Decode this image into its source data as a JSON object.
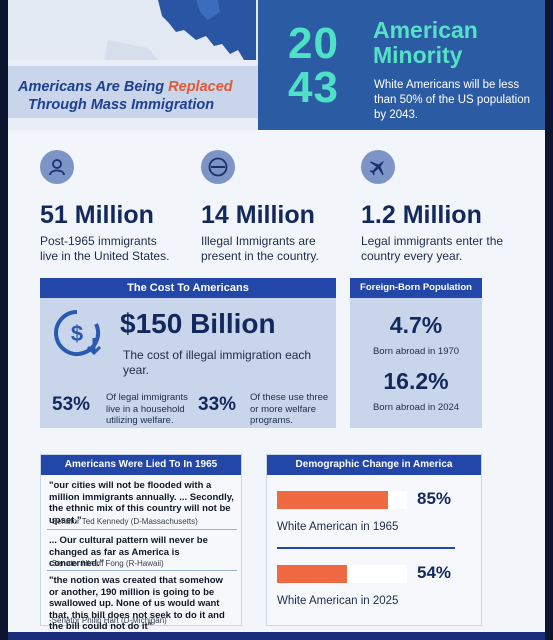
{
  "header": {
    "tagline_part1": "Americans Are Being ",
    "tagline_accent": "Replaced",
    "tagline_part2": "Through Mass Immigration",
    "year_top": "20",
    "year_bottom": "43",
    "title_line1": "American",
    "title_line2": "Minority",
    "subtitle": "White Americans will be less than 50% of the US population by 2043."
  },
  "stats": [
    {
      "icon": "person-icon",
      "value": "51 Million",
      "desc": "Post-1965 immigrants live in the United States."
    },
    {
      "icon": "no-entry-icon",
      "value": "14 Million",
      "desc": "Illegal Immigrants are present in the country."
    },
    {
      "icon": "airplane-icon",
      "value": "1.2 Million",
      "desc": "Legal immigrants enter the country every year."
    }
  ],
  "cost": {
    "header": "The Cost To Americans",
    "icon": "dollar-down-icon",
    "value": "$150 Billion",
    "desc": "The cost of illegal immigration each year.",
    "pct1": "53%",
    "pct1_desc": "Of legal immigrants live in a household utilizing welfare.",
    "pct2": "33%",
    "pct2_desc": "Of these use three or more welfare programs."
  },
  "foreign_born": {
    "header": "Foreign-Born Population",
    "value1": "4.7%",
    "label1": "Born abroad in 1970",
    "value2": "16.2%",
    "label2": "Born abroad in 2024"
  },
  "quotes": {
    "header": "Americans Were Lied To In 1965",
    "items": [
      {
        "text": "\"our cities will not be flooded with a million immigrants annually. ... Secondly, the ethnic mix of this country will not be upset.\"",
        "author": "-Senator Ted Kennedy (D-Massachusetts)"
      },
      {
        "text": "... Our cultural pattern will never be changed as far as America is concerned.\"",
        "author": "-Senator Hiram Fong (R-Hawaii)"
      },
      {
        "text": "\"the notion was created that somehow or another, 190 million is going to be swallowed up. None of us would want that, this bill does not seek to do it and the bill could not do it\"",
        "author": "-Senator Philip Hart (D-Michigan)"
      }
    ]
  },
  "demographic": {
    "header": "Demographic Change in America",
    "bar1_value": 0.85,
    "bar1_pct": "85%",
    "bar1_label": "White American in 1965",
    "bar2_value": 0.54,
    "bar2_pct": "54%",
    "bar2_label": "White American in 2025",
    "bar_color": "#ef6a43"
  },
  "colors": {
    "navy": "#13295e",
    "header_blue": "#2b5ca3",
    "teal": "#4fe0c8",
    "accent_orange": "#e25a35",
    "panel_header": "#2347a9"
  }
}
